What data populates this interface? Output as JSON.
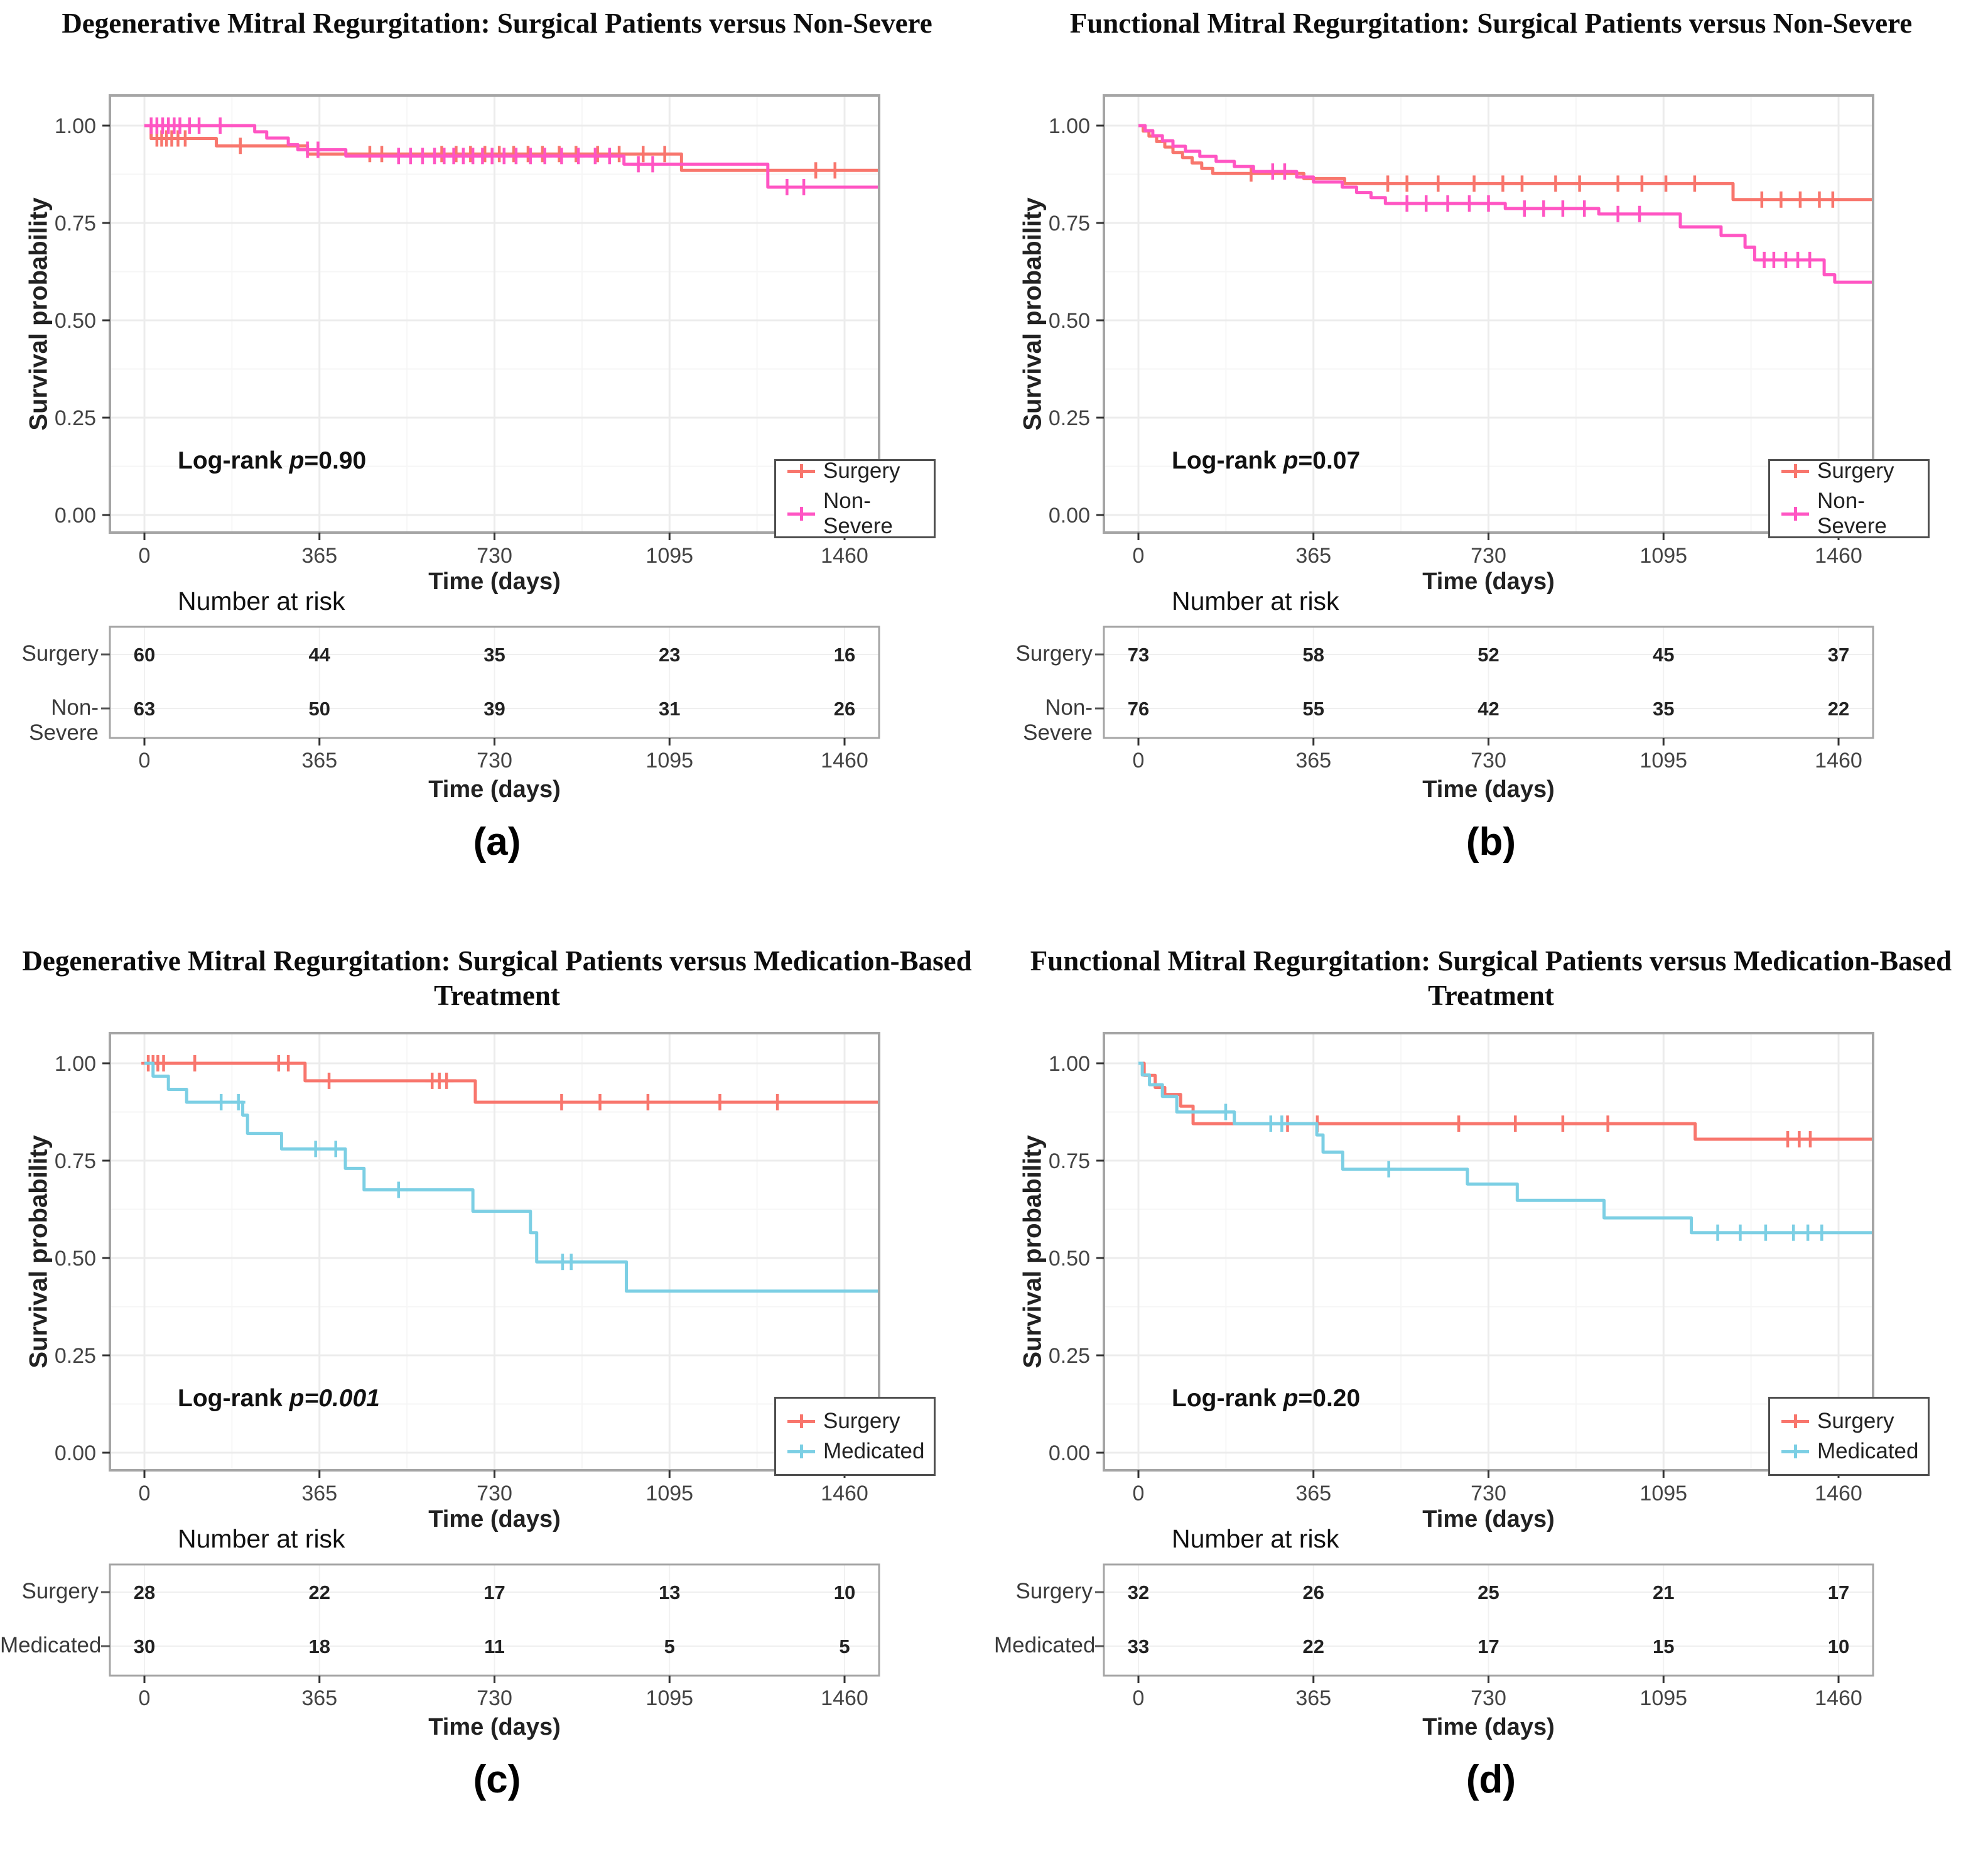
{
  "figure": {
    "type": "kaplan-meier-grid",
    "background": "#ffffff"
  },
  "colors": {
    "surgery_red": "#F8766D",
    "non_severe_pink": "#FF55C3",
    "medicated_blue": "#7CCFE4"
  },
  "panels": [
    {
      "id": "a",
      "caption": "(a)",
      "title": "Degenerative Mitral Regurgitation: Surgical Patients versus Non-Severe",
      "pvalue": {
        "prefix": "Log-rank ",
        "p": "p",
        "value": "=0.90",
        "italic_value": false
      },
      "ylabel": "Survival probability",
      "xlabel": "Time (days)",
      "yticks": [
        "1.00",
        "0.75",
        "0.50",
        "0.25",
        "0.00"
      ],
      "legend": [
        {
          "label": "Surgery",
          "color": "#F8766D"
        },
        {
          "label": "Non-Severe",
          "color": "#FF55C3"
        }
      ],
      "risk": {
        "header": "Number at risk",
        "xlabel": "Time (days)",
        "rows": [
          {
            "label": "Surgery",
            "values": [
              60,
              44,
              35,
              23,
              16
            ]
          },
          {
            "label": "Non-Severe",
            "values": [
              63,
              50,
              39,
              31,
              26
            ]
          }
        ]
      }
    },
    {
      "id": "b",
      "caption": "(b)",
      "title": "Functional Mitral Regurgitation: Surgical Patients versus Non-Severe",
      "pvalue": {
        "prefix": "Log-rank ",
        "p": "p",
        "value": "=0.07",
        "italic_value": false
      },
      "ylabel": "Survival probability",
      "xlabel": "Time (days)",
      "yticks": [
        "1.00",
        "0.75",
        "0.50",
        "0.25",
        "0.00"
      ],
      "legend": [
        {
          "label": "Surgery",
          "color": "#F8766D"
        },
        {
          "label": "Non-Severe",
          "color": "#FF55C3"
        }
      ],
      "risk": {
        "header": "Number at risk",
        "xlabel": "Time (days)",
        "rows": [
          {
            "label": "Surgery",
            "values": [
              73,
              58,
              52,
              45,
              37
            ]
          },
          {
            "label": "Non-Severe",
            "values": [
              76,
              55,
              42,
              35,
              22
            ]
          }
        ]
      }
    },
    {
      "id": "c",
      "caption": "(c)",
      "title": "Degenerative Mitral Regurgitation: Surgical Patients versus Medication-Based Treatment",
      "pvalue": {
        "prefix": "Log-rank ",
        "p": "p",
        "value": "=0.001",
        "italic_value": true
      },
      "ylabel": "Survival probability",
      "xlabel": "Time (days)",
      "yticks": [
        "1.00",
        "0.75",
        "0.50",
        "0.25",
        "0.00"
      ],
      "legend": [
        {
          "label": "Surgery",
          "color": "#F8766D"
        },
        {
          "label": "Medicated",
          "color": "#7CCFE4"
        }
      ],
      "risk": {
        "header": "Number at risk",
        "xlabel": "Time (days)",
        "rows": [
          {
            "label": "Surgery",
            "values": [
              28,
              22,
              17,
              13,
              10
            ]
          },
          {
            "label": "Medicated",
            "values": [
              30,
              18,
              11,
              5,
              5
            ]
          }
        ]
      }
    },
    {
      "id": "d",
      "caption": "(d)",
      "title": "Functional Mitral Regurgitation: Surgical Patients versus Medication-Based Treatment",
      "pvalue": {
        "prefix": "Log-rank ",
        "p": "p",
        "value": "=0.20",
        "italic_value": false
      },
      "ylabel": "Survival probability",
      "xlabel": "Time (days)",
      "yticks": [
        "1.00",
        "0.75",
        "0.50",
        "0.25",
        "0.00"
      ],
      "legend": [
        {
          "label": "Surgery",
          "color": "#F8766D"
        },
        {
          "label": "Medicated",
          "color": "#7CCFE4"
        }
      ],
      "risk": {
        "header": "Number at risk",
        "xlabel": "Time (days)",
        "rows": [
          {
            "label": "Surgery",
            "values": [
              32,
              26,
              25,
              21,
              17
            ]
          },
          {
            "label": "Medicated",
            "values": [
              33,
              22,
              17,
              15,
              10
            ]
          }
        ]
      }
    }
  ],
  "chart_data": [
    {
      "type": "line",
      "subtype": "kaplan-meier-step",
      "title": "Degenerative Mitral Regurgitation: Surgical Patients versus Non-Severe",
      "xlabel": "Time (days)",
      "ylabel": "Survival probability",
      "xlim": [
        0,
        1500
      ],
      "ylim": [
        0,
        1.05
      ],
      "xticks": [
        0,
        365,
        730,
        1095,
        1460
      ],
      "yticks": [
        1.0,
        0.75,
        0.5,
        0.25,
        0.0
      ],
      "grid": true,
      "legend_position": "bottom-right",
      "log_rank_p": "0.90",
      "series": [
        {
          "name": "Surgery",
          "color": "#F8766D",
          "steps": [
            [
              0,
              1.0
            ],
            [
              14,
              0.967
            ],
            [
              150,
              0.948
            ],
            [
              340,
              0.927
            ],
            [
              1120,
              0.885
            ]
          ],
          "censors": [
            26,
            36,
            46,
            57,
            70,
            85,
            200,
            470,
            495,
            620,
            650,
            680,
            710,
            740,
            770,
            800,
            830,
            865,
            900,
            945,
            990,
            1040,
            1085,
            1400,
            1440
          ]
        },
        {
          "name": "Non-Severe",
          "color": "#FF55C3",
          "steps": [
            [
              0,
              1.0
            ],
            [
              230,
              0.984
            ],
            [
              255,
              0.968
            ],
            [
              300,
              0.951
            ],
            [
              320,
              0.938
            ],
            [
              420,
              0.922
            ],
            [
              1000,
              0.901
            ],
            [
              1300,
              0.842
            ]
          ],
          "censors": [
            14,
            26,
            38,
            50,
            62,
            74,
            94,
            114,
            158,
            340,
            362,
            530,
            555,
            580,
            605,
            625,
            645,
            665,
            685,
            705,
            725,
            750,
            775,
            805,
            835,
            870,
            905,
            940,
            970,
            1030,
            1060,
            1340,
            1375
          ]
        }
      ]
    },
    {
      "type": "line",
      "subtype": "kaplan-meier-step",
      "title": "Functional Mitral Regurgitation: Surgical Patients versus Non-Severe",
      "xlabel": "Time (days)",
      "ylabel": "Survival probability",
      "xlim": [
        0,
        1500
      ],
      "ylim": [
        0,
        1.05
      ],
      "xticks": [
        0,
        365,
        730,
        1095,
        1460
      ],
      "yticks": [
        1.0,
        0.75,
        0.5,
        0.25,
        0.0
      ],
      "grid": true,
      "legend_position": "bottom-right",
      "log_rank_p": "0.07",
      "series": [
        {
          "name": "Surgery",
          "color": "#F8766D",
          "steps": [
            [
              0,
              1.0
            ],
            [
              10,
              0.986
            ],
            [
              22,
              0.973
            ],
            [
              38,
              0.959
            ],
            [
              55,
              0.945
            ],
            [
              72,
              0.931
            ],
            [
              92,
              0.918
            ],
            [
              112,
              0.904
            ],
            [
              132,
              0.89
            ],
            [
              155,
              0.877
            ],
            [
              345,
              0.864
            ],
            [
              430,
              0.851
            ],
            [
              1240,
              0.81
            ]
          ],
          "censors": [
            235,
            520,
            560,
            625,
            700,
            760,
            800,
            870,
            920,
            1000,
            1050,
            1100,
            1160,
            1300,
            1340,
            1380,
            1420,
            1448
          ]
        },
        {
          "name": "Non-Severe",
          "color": "#FF55C3",
          "steps": [
            [
              0,
              1.0
            ],
            [
              14,
              0.987
            ],
            [
              30,
              0.974
            ],
            [
              50,
              0.961
            ],
            [
              72,
              0.947
            ],
            [
              98,
              0.934
            ],
            [
              128,
              0.921
            ],
            [
              162,
              0.908
            ],
            [
              200,
              0.895
            ],
            [
              240,
              0.882
            ],
            [
              330,
              0.868
            ],
            [
              365,
              0.855
            ],
            [
              425,
              0.842
            ],
            [
              455,
              0.828
            ],
            [
              485,
              0.815
            ],
            [
              515,
              0.8
            ],
            [
              765,
              0.787
            ],
            [
              960,
              0.773
            ],
            [
              1130,
              0.74
            ],
            [
              1215,
              0.718
            ],
            [
              1265,
              0.688
            ],
            [
              1285,
              0.655
            ],
            [
              1430,
              0.617
            ],
            [
              1452,
              0.598
            ]
          ],
          "censors": [
            280,
            305,
            560,
            600,
            645,
            690,
            730,
            805,
            845,
            885,
            930,
            1000,
            1045,
            1305,
            1325,
            1350,
            1375,
            1400
          ]
        }
      ]
    },
    {
      "type": "line",
      "subtype": "kaplan-meier-step",
      "title": "Degenerative Mitral Regurgitation: Surgical Patients versus Medication-Based Treatment",
      "xlabel": "Time (days)",
      "ylabel": "Survival probability",
      "xlim": [
        0,
        1500
      ],
      "ylim": [
        0,
        1.05
      ],
      "xticks": [
        0,
        365,
        730,
        1095,
        1460
      ],
      "yticks": [
        1.0,
        0.75,
        0.5,
        0.25,
        0.0
      ],
      "grid": true,
      "legend_position": "bottom-right",
      "log_rank_p": "0.001",
      "series": [
        {
          "name": "Surgery",
          "color": "#F8766D",
          "steps": [
            [
              0,
              1.0
            ],
            [
              335,
              0.955
            ],
            [
              690,
              0.9
            ]
          ],
          "censors": [
            8,
            18,
            28,
            40,
            105,
            280,
            300,
            385,
            600,
            615,
            630,
            870,
            950,
            1050,
            1200,
            1320
          ]
        },
        {
          "name": "Medicated",
          "color": "#7CCFE4",
          "steps": [
            [
              0,
              1.0
            ],
            [
              18,
              0.967
            ],
            [
              50,
              0.933
            ],
            [
              88,
              0.9
            ],
            [
              205,
              0.867
            ],
            [
              215,
              0.82
            ],
            [
              286,
              0.78
            ],
            [
              419,
              0.73
            ],
            [
              458,
              0.675
            ],
            [
              685,
              0.62
            ],
            [
              805,
              0.565
            ],
            [
              818,
              0.49
            ],
            [
              1005,
              0.415
            ]
          ],
          "censors": [
            160,
            196,
            357,
            399,
            530,
            872,
            890
          ]
        }
      ]
    },
    {
      "type": "line",
      "subtype": "kaplan-meier-step",
      "title": "Functional Mitral Regurgitation: Surgical Patients versus Medication-Based Treatment",
      "xlabel": "Time (days)",
      "ylabel": "Survival probability",
      "xlim": [
        0,
        1500
      ],
      "ylim": [
        0,
        1.05
      ],
      "xticks": [
        0,
        365,
        730,
        1095,
        1460
      ],
      "yticks": [
        1.0,
        0.75,
        0.5,
        0.25,
        0.0
      ],
      "grid": true,
      "legend_position": "bottom-right",
      "log_rank_p": "0.20",
      "series": [
        {
          "name": "Surgery",
          "color": "#F8766D",
          "steps": [
            [
              0,
              1.0
            ],
            [
              12,
              0.969
            ],
            [
              35,
              0.938
            ],
            [
              55,
              0.92
            ],
            [
              88,
              0.89
            ],
            [
              114,
              0.845
            ],
            [
              1161,
              0.805
            ]
          ],
          "censors": [
            311,
            373,
            668,
            786,
            885,
            979,
            1354,
            1378,
            1401
          ]
        },
        {
          "name": "Medicated",
          "color": "#7CCFE4",
          "steps": [
            [
              0,
              1.0
            ],
            [
              8,
              0.97
            ],
            [
              23,
              0.945
            ],
            [
              50,
              0.915
            ],
            [
              80,
              0.875
            ],
            [
              200,
              0.845
            ],
            [
              372,
              0.816
            ],
            [
              385,
              0.772
            ],
            [
              426,
              0.728
            ],
            [
              686,
              0.69
            ],
            [
              790,
              0.648
            ],
            [
              971,
              0.603
            ],
            [
              1153,
              0.565
            ]
          ],
          "censors": [
            182,
            276,
            299,
            522,
            1208,
            1255,
            1308,
            1366,
            1396,
            1425
          ]
        }
      ]
    }
  ]
}
